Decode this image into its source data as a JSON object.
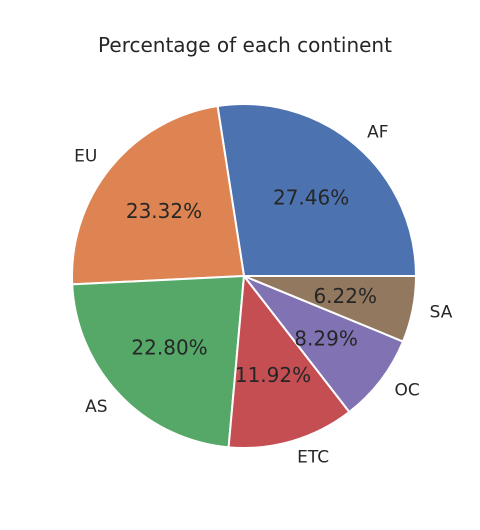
{
  "chart_data": {
    "type": "pie",
    "title": "Percentage of each continent",
    "slices": [
      {
        "label": "AF",
        "value": 27.46,
        "pct_label": "27.46%",
        "color": "#4c72b0"
      },
      {
        "label": "EU",
        "value": 23.32,
        "pct_label": "23.32%",
        "color": "#dd8452"
      },
      {
        "label": "AS",
        "value": 22.8,
        "pct_label": "22.80%",
        "color": "#55a868"
      },
      {
        "label": "ETC",
        "value": 11.92,
        "pct_label": "11.92%",
        "color": "#c44e52"
      },
      {
        "label": "OC",
        "value": 8.29,
        "pct_label": "8.29%",
        "color": "#8172b3"
      },
      {
        "label": "SA",
        "value": 6.22,
        "pct_label": "6.22%",
        "color": "#937860"
      }
    ],
    "start_angle_deg": 0,
    "direction": "counterclockwise",
    "legend": "none"
  }
}
